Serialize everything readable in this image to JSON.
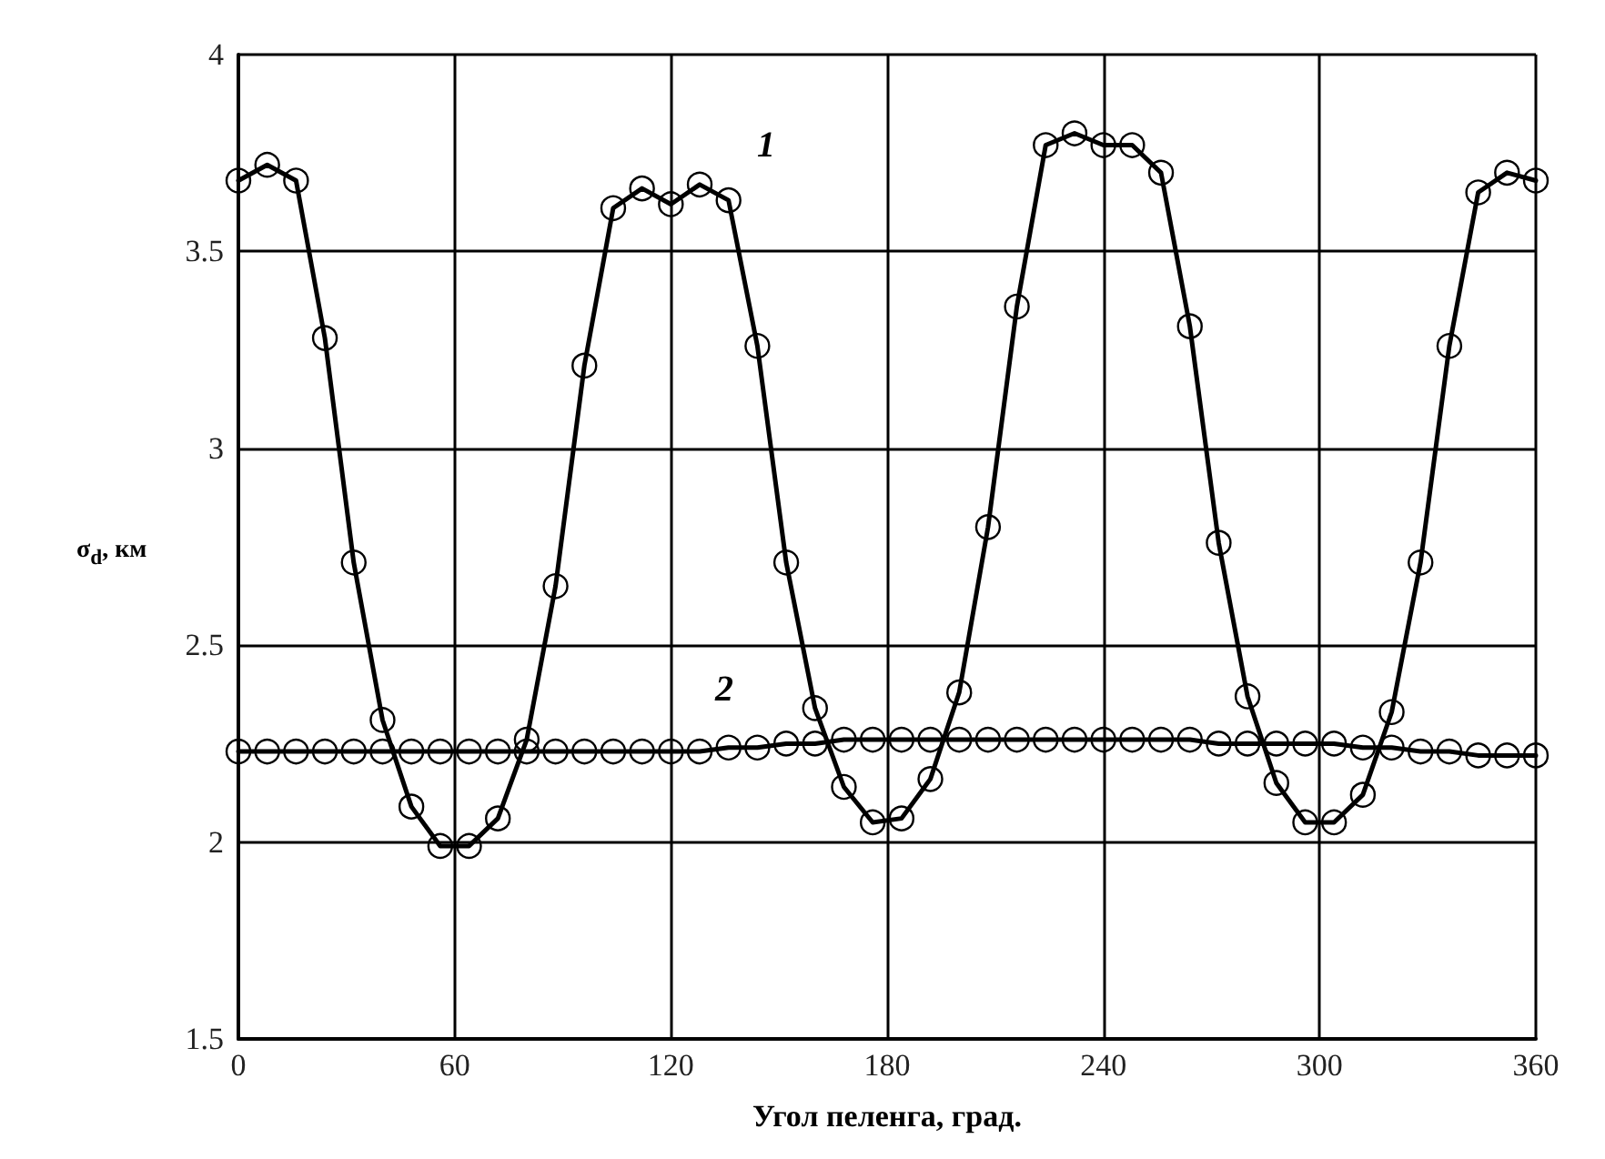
{
  "chart_data": {
    "type": "line",
    "xlabel": "Угол пеленга, град.",
    "ylabel": "σ$_{d}$, км",
    "x": [
      0,
      8,
      16,
      24,
      32,
      40,
      48,
      56,
      64,
      72,
      80,
      88,
      96,
      104,
      112,
      120,
      128,
      136,
      144,
      152,
      160,
      168,
      176,
      184,
      192,
      200,
      208,
      216,
      224,
      232,
      240,
      248,
      256,
      264,
      272,
      280,
      288,
      296,
      304,
      312,
      320,
      328,
      336,
      344,
      352,
      360
    ],
    "series": [
      {
        "color": "#000000",
        "values": [
          3.68,
          3.72,
          3.68,
          3.28,
          2.71,
          2.31,
          2.09,
          1.99,
          1.99,
          2.06,
          2.26,
          2.65,
          3.21,
          3.61,
          3.66,
          3.62,
          3.67,
          3.63,
          3.26,
          2.71,
          2.34,
          2.14,
          2.05,
          2.06,
          2.16,
          2.38,
          2.8,
          3.36,
          3.77,
          3.8,
          3.77,
          3.77,
          3.7,
          3.31,
          2.76,
          2.37,
          2.15,
          2.05,
          2.05,
          2.12,
          2.33,
          2.71,
          3.26,
          3.65,
          3.7,
          3.68
        ]
      },
      {
        "color": "#000000",
        "values": [
          2.23,
          2.23,
          2.23,
          2.23,
          2.23,
          2.23,
          2.23,
          2.23,
          2.23,
          2.23,
          2.23,
          2.23,
          2.23,
          2.23,
          2.23,
          2.23,
          2.23,
          2.24,
          2.24,
          2.25,
          2.25,
          2.26,
          2.26,
          2.26,
          2.26,
          2.26,
          2.26,
          2.26,
          2.26,
          2.26,
          2.26,
          2.26,
          2.26,
          2.26,
          2.25,
          2.25,
          2.25,
          2.25,
          2.25,
          2.24,
          2.24,
          2.23,
          2.23,
          2.22,
          2.22,
          2.22
        ]
      }
    ],
    "xlim": [
      0,
      360
    ],
    "xticks": [
      0,
      60,
      120,
      180,
      240,
      300,
      360
    ],
    "ylim": [
      1.5,
      4
    ],
    "yticks": [
      1.5,
      2,
      2.5,
      3,
      3.5,
      4
    ],
    "grid": true,
    "marker": "circle",
    "line_style": "solid",
    "annotations": [
      "1",
      "2"
    ]
  }
}
